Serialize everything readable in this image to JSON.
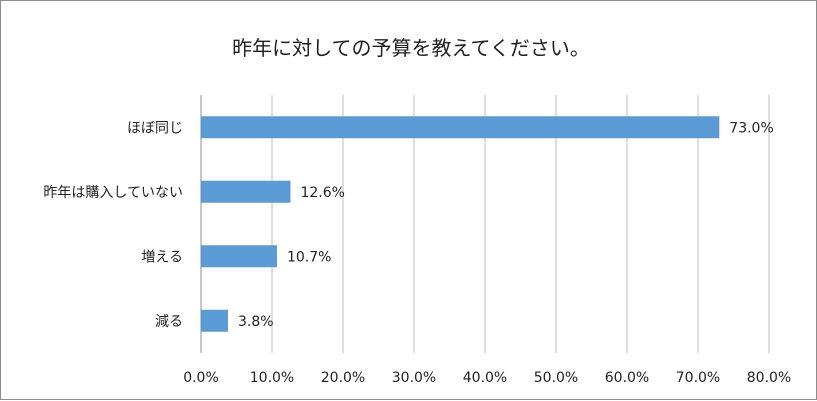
{
  "chart_data": {
    "type": "bar",
    "orientation": "horizontal",
    "title": "昨年に対しての予算を教えてください。",
    "categories": [
      "ほぼ同じ",
      "昨年は購入していない",
      "増える",
      "減る"
    ],
    "values": [
      73.0,
      12.6,
      10.7,
      3.8
    ],
    "data_labels": [
      "73.0%",
      "12.6%",
      "10.7%",
      "3.8%"
    ],
    "x_ticks": [
      "0.0%",
      "10.0%",
      "20.0%",
      "30.0%",
      "40.0%",
      "50.0%",
      "60.0%",
      "70.0%",
      "80.0%"
    ],
    "xlim": [
      0,
      80
    ],
    "grid": true,
    "legend": "none",
    "colors": {
      "bar": "#5b9bd5",
      "grid": "#bfbfbf"
    }
  }
}
